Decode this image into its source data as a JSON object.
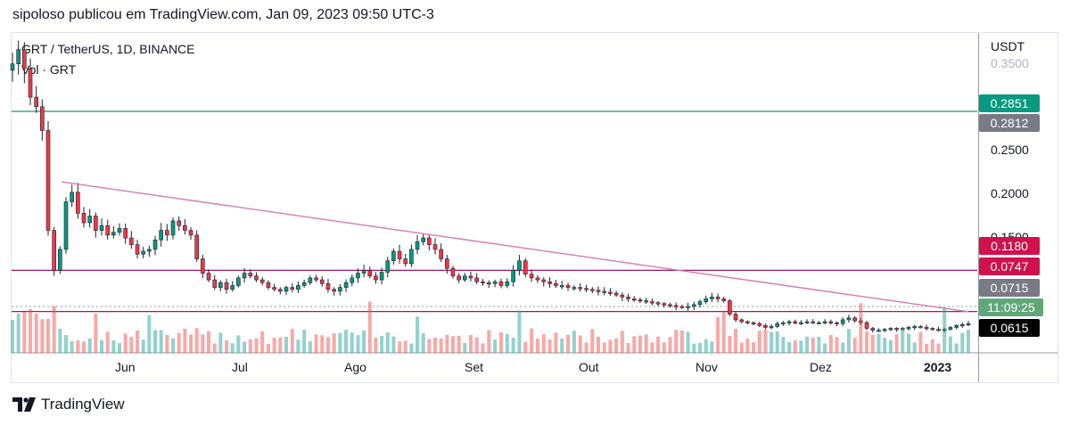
{
  "header": {
    "text": "sipoloso publicou em TradingView.com, Jan 09, 2023 09:50 UTC-3"
  },
  "footer": {
    "brand": "TradingView",
    "logo_icon": "tradingview-logo-icon"
  },
  "chart_data": {
    "type": "candlestick",
    "symbol_line": "GRT / TetherUS, 1D, BINANCE",
    "volume_line": "Vol · GRT",
    "price_unit": "USDT",
    "x_ticks": [
      "Jun",
      "Jul",
      "Ago",
      "Set",
      "Out",
      "Nov",
      "Dez",
      "2023"
    ],
    "y_ticks": [
      "0.3500",
      "0.2500",
      "0.2000",
      "0.1500"
    ],
    "y_range_approx": [
      0.05,
      0.36
    ],
    "price_badges": [
      {
        "label": "0.2851",
        "color": "#089981"
      },
      {
        "label": "0.2812",
        "color": "#787b86"
      },
      {
        "label": "0.1180",
        "color": "#d1104e"
      },
      {
        "label": "0.0747",
        "color": "#d1104e"
      },
      {
        "label": "0.0715",
        "color": "#787b86"
      },
      {
        "label": "11:09:25",
        "color": "#5fa779"
      },
      {
        "label": "0.0615",
        "color": "#000000"
      }
    ],
    "horizontal_lines": [
      {
        "value": 0.2851,
        "color": "#1a8f7a"
      },
      {
        "value": 0.118,
        "color": "#a01a5a"
      },
      {
        "value": 0.0747,
        "color": "#a01a5a"
      }
    ],
    "trendline": {
      "color": "#d67bb0",
      "from": {
        "date": "2022-05-15",
        "price": 0.211
      },
      "to": {
        "date": "2023-01-09",
        "price": 0.0745
      }
    },
    "period": {
      "start": "2022-05-02",
      "end": "2023-01-09"
    },
    "close_series": [
      0.335,
      0.35,
      0.33,
      0.3,
      0.29,
      0.265,
      0.16,
      0.118,
      0.14,
      0.19,
      0.2,
      0.178,
      0.168,
      0.175,
      0.16,
      0.165,
      0.155,
      0.158,
      0.162,
      0.152,
      0.145,
      0.135,
      0.138,
      0.14,
      0.15,
      0.16,
      0.155,
      0.17,
      0.165,
      0.16,
      0.155,
      0.13,
      0.115,
      0.108,
      0.1,
      0.105,
      0.098,
      0.102,
      0.11,
      0.115,
      0.112,
      0.108,
      0.105,
      0.1,
      0.098,
      0.096,
      0.1,
      0.098,
      0.102,
      0.105,
      0.11,
      0.108,
      0.104,
      0.098,
      0.096,
      0.1,
      0.105,
      0.11,
      0.115,
      0.118,
      0.112,
      0.108,
      0.116,
      0.128,
      0.138,
      0.13,
      0.125,
      0.14,
      0.148,
      0.152,
      0.145,
      0.14,
      0.13,
      0.12,
      0.112,
      0.108,
      0.112,
      0.11,
      0.106,
      0.105,
      0.104,
      0.106,
      0.102,
      0.106,
      0.118,
      0.128,
      0.114,
      0.11,
      0.108,
      0.106,
      0.104,
      0.102,
      0.102,
      0.1,
      0.1,
      0.099,
      0.098,
      0.097,
      0.096,
      0.095,
      0.094,
      0.092,
      0.09,
      0.088,
      0.087,
      0.086,
      0.085,
      0.084,
      0.083,
      0.082,
      0.081,
      0.08,
      0.079,
      0.08,
      0.082,
      0.085,
      0.088,
      0.09,
      0.088,
      0.086,
      0.072,
      0.066,
      0.064,
      0.063,
      0.062,
      0.06,
      0.058,
      0.059,
      0.062,
      0.063,
      0.064,
      0.063,
      0.063,
      0.064,
      0.063,
      0.063,
      0.064,
      0.063,
      0.062,
      0.066,
      0.068,
      0.065,
      0.063,
      0.057,
      0.055,
      0.055,
      0.056,
      0.057,
      0.056,
      0.057,
      0.058,
      0.059,
      0.058,
      0.057,
      0.056,
      0.055,
      0.056,
      0.058,
      0.06,
      0.061,
      0.062
    ]
  }
}
